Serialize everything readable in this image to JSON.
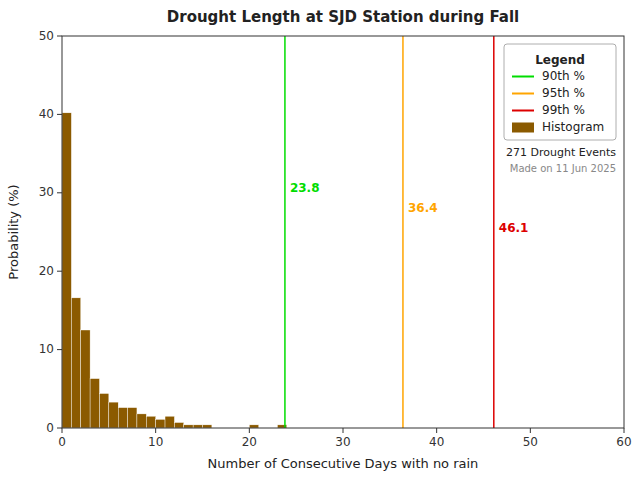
{
  "chart_data": {
    "type": "histogram",
    "title": "Drought Length at SJD Station during Fall",
    "x_label": "Number of Consecutive Days with no rain",
    "y_label": "Probability (%)",
    "bins": [
      0,
      1,
      2,
      3,
      4,
      5,
      6,
      7,
      8,
      9,
      10,
      11,
      12,
      13,
      14,
      15,
      16,
      17,
      18,
      19,
      20,
      21,
      22,
      23,
      24,
      25,
      26,
      27,
      28,
      29,
      30,
      31,
      32,
      33,
      34,
      35,
      36,
      37,
      38,
      39,
      40,
      41,
      42,
      43,
      44,
      45,
      46,
      47,
      48,
      49,
      50,
      51,
      52,
      53,
      54,
      55,
      56,
      57,
      58,
      59,
      60
    ],
    "xlim": [
      0,
      60
    ],
    "ylim": [
      0,
      50
    ],
    "xticks": [
      0,
      10,
      20,
      30,
      40,
      50,
      60
    ],
    "yticks": [
      0,
      10,
      20,
      30,
      40,
      50
    ],
    "grid": false,
    "legend": "upper right",
    "legend_title": "Legend",
    "series": [
      {
        "name": "90th %",
        "type": "vline",
        "color": "#00DD00",
        "values": [
          23.8
        ],
        "data_labels": true
      },
      {
        "name": "95th %",
        "type": "vline",
        "color": "#FFA500",
        "values": [
          36.4
        ],
        "data_labels": true
      },
      {
        "name": "99th %",
        "type": "vline",
        "color": "#DD0000",
        "values": [
          46.1
        ],
        "data_labels": true
      },
      {
        "name": "Histogram",
        "type": "bar",
        "color": "#8B5A00",
        "values": [
          40.2,
          16.6,
          12.5,
          6.3,
          4.4,
          3.3,
          2.6,
          2.6,
          1.8,
          1.5,
          1.1,
          1.5,
          0.7,
          0.4,
          0.4,
          0.4,
          0.0,
          0.0,
          0.0,
          0.0,
          0.4,
          0.0,
          0.0,
          0.4,
          0.0,
          0.0,
          0.0,
          0.0,
          0.0,
          0.0,
          0.0,
          0.0,
          0.0,
          0.0,
          0.0,
          0.0,
          0.0,
          0.0,
          0.0,
          0.0,
          0.0,
          0.0,
          0.0,
          0.0,
          0.0,
          0.0,
          0.0,
          0.0,
          0.0,
          0.0,
          0.0,
          0.0,
          0.0,
          0.0,
          0.0,
          0.0,
          0.0,
          0.0,
          0.0,
          0.0
        ]
      }
    ],
    "annotations": [
      "271 Drought Events",
      "Made on 11 Jun 2025"
    ]
  }
}
